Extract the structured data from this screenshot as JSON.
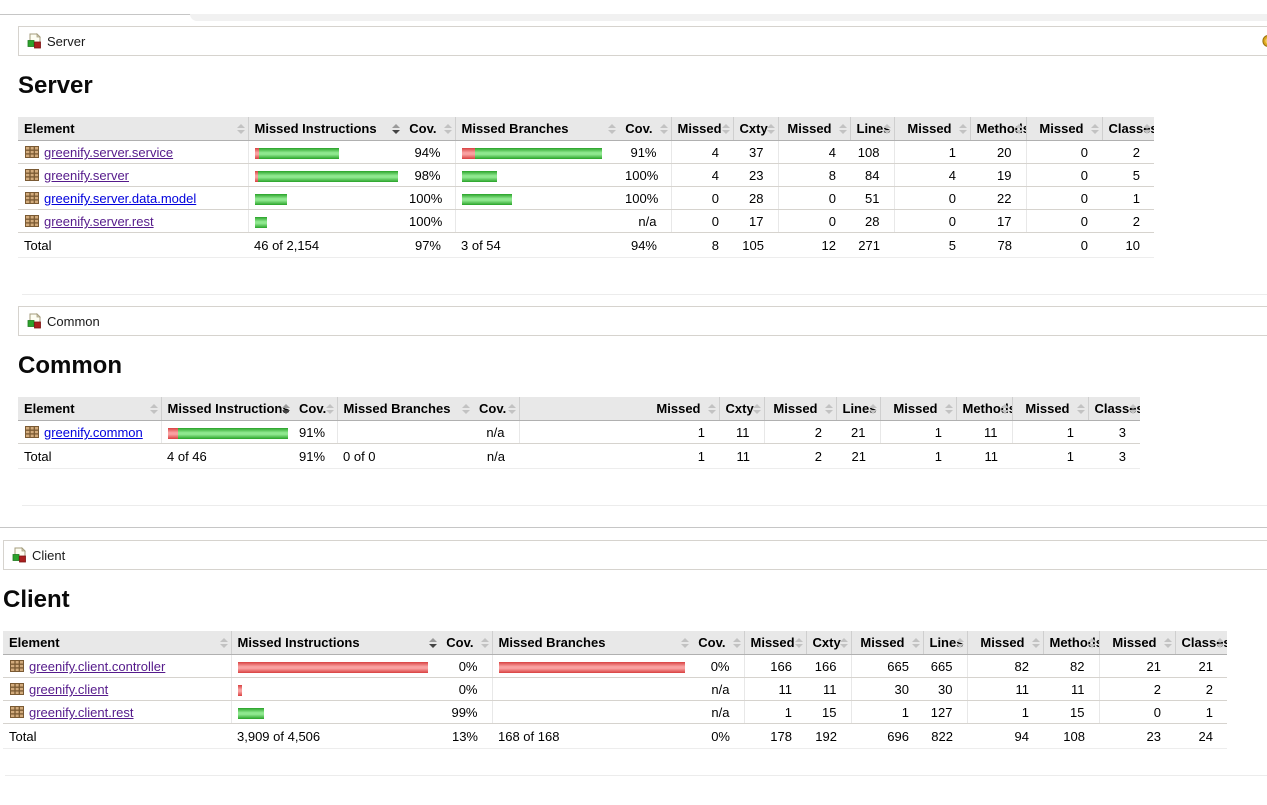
{
  "colors": {
    "covered_green": "#28a228",
    "missed_red": "#d84040",
    "link_blue": "#0000dd",
    "link_visited_purple": "#551a8b",
    "session_icon_gold": "#dfa81f"
  },
  "columns": [
    {
      "label": "Element",
      "role": "element"
    },
    {
      "label": "Missed Instructions",
      "role": "bar",
      "sorted": true
    },
    {
      "label": "Cov.",
      "role": "cov"
    },
    {
      "label": "Missed Branches",
      "role": "bar"
    },
    {
      "label": "Cov.",
      "role": "cov"
    },
    {
      "label": "Missed",
      "role": "num"
    },
    {
      "label": "Cxty",
      "role": "num2"
    },
    {
      "label": "Missed",
      "role": "num"
    },
    {
      "label": "Lines",
      "role": "num2"
    },
    {
      "label": "Missed",
      "role": "num"
    },
    {
      "label": "Methods",
      "role": "num2"
    },
    {
      "label": "Missed",
      "role": "num"
    },
    {
      "label": "Classes",
      "role": "num2"
    }
  ],
  "sections": [
    {
      "id": "server",
      "breadcrumb": "Server",
      "title": "Server",
      "session_icon_visible": true,
      "rows": [
        {
          "element": "greenify.server.service",
          "visited": true,
          "instr_bar": {
            "red": 4,
            "green": 80
          },
          "instr_cov": "94%",
          "branch_bar": {
            "red": 13,
            "green": 127
          },
          "branch_cov": "91%",
          "counters": [
            "4",
            "37",
            "4",
            "108",
            "1",
            "20",
            "0",
            "2"
          ]
        },
        {
          "element": "greenify.server",
          "visited": true,
          "instr_bar": {
            "red": 3,
            "green": 140
          },
          "instr_cov": "98%",
          "branch_bar": {
            "red": 0,
            "green": 35
          },
          "branch_cov": "100%",
          "counters": [
            "4",
            "23",
            "8",
            "84",
            "4",
            "19",
            "0",
            "5"
          ]
        },
        {
          "element": "greenify.server.data.model",
          "visited": false,
          "instr_bar": {
            "red": 0,
            "green": 32
          },
          "instr_cov": "100%",
          "branch_bar": {
            "red": 0,
            "green": 50
          },
          "branch_cov": "100%",
          "counters": [
            "0",
            "28",
            "0",
            "51",
            "0",
            "22",
            "0",
            "1"
          ]
        },
        {
          "element": "greenify.server.rest",
          "visited": true,
          "instr_bar": {
            "red": 0,
            "green": 12
          },
          "instr_cov": "100%",
          "branch_bar": {
            "red": 0,
            "green": 0
          },
          "branch_cov": "n/a",
          "counters": [
            "0",
            "17",
            "0",
            "28",
            "0",
            "17",
            "0",
            "2"
          ]
        }
      ],
      "total": {
        "label": "Total",
        "instr": "46 of 2,154",
        "instr_cov": "97%",
        "branch": "3 of 54",
        "branch_cov": "94%",
        "counters": [
          "8",
          "105",
          "12",
          "271",
          "5",
          "78",
          "0",
          "10"
        ]
      }
    },
    {
      "id": "common",
      "breadcrumb": "Common",
      "title": "Common",
      "session_icon_visible": false,
      "rows": [
        {
          "element": "greenify.common",
          "visited": false,
          "instr_bar": {
            "red": 10,
            "green": 110
          },
          "instr_cov": "91%",
          "branch_bar": {
            "red": 0,
            "green": 0
          },
          "branch_cov": "n/a",
          "counters": [
            "1",
            "11",
            "2",
            "21",
            "1",
            "11",
            "1",
            "3"
          ]
        }
      ],
      "total": {
        "label": "Total",
        "instr": "4 of 46",
        "instr_cov": "91%",
        "branch": "0 of 0",
        "branch_cov": "n/a",
        "counters": [
          "1",
          "11",
          "2",
          "21",
          "1",
          "11",
          "1",
          "3"
        ]
      }
    },
    {
      "id": "client",
      "breadcrumb": "Client",
      "title": "Client",
      "session_icon_visible": false,
      "rows": [
        {
          "element": "greenify.client.controller",
          "visited": true,
          "instr_bar": {
            "red": 190,
            "green": 0
          },
          "instr_cov": "0%",
          "branch_bar": {
            "red": 186,
            "green": 0
          },
          "branch_cov": "0%",
          "counters": [
            "166",
            "166",
            "665",
            "665",
            "82",
            "82",
            "21",
            "21"
          ]
        },
        {
          "element": "greenify.client",
          "visited": true,
          "instr_bar": {
            "red": 4,
            "green": 0
          },
          "instr_cov": "0%",
          "branch_bar": {
            "red": 0,
            "green": 0
          },
          "branch_cov": "n/a",
          "counters": [
            "11",
            "11",
            "30",
            "30",
            "11",
            "11",
            "2",
            "2"
          ]
        },
        {
          "element": "greenify.client.rest",
          "visited": true,
          "instr_bar": {
            "red": 0,
            "green": 26
          },
          "instr_cov": "99%",
          "branch_bar": {
            "red": 0,
            "green": 0
          },
          "branch_cov": "n/a",
          "counters": [
            "1",
            "15",
            "1",
            "127",
            "1",
            "15",
            "0",
            "1"
          ]
        }
      ],
      "total": {
        "label": "Total",
        "instr": "3,909 of 4,506",
        "instr_cov": "13%",
        "branch": "168 of 168",
        "branch_cov": "0%",
        "counters": [
          "178",
          "192",
          "696",
          "822",
          "94",
          "108",
          "23",
          "24"
        ]
      }
    }
  ]
}
